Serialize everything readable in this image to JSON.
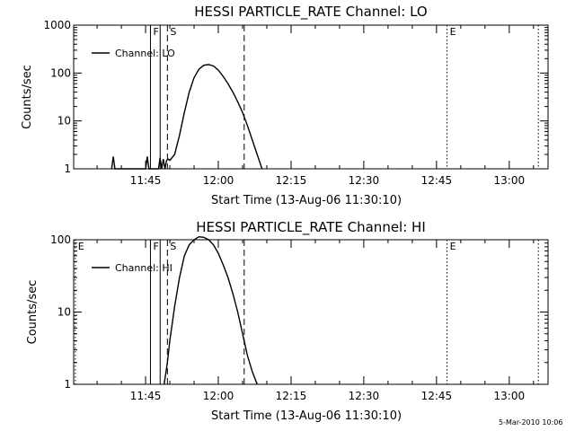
{
  "chart_data": [
    {
      "type": "line",
      "title": "HESSI PARTICLE_RATE Channel: LO",
      "xlabel": "Start Time (13-Aug-06 11:30:10)",
      "ylabel": "Counts/sec",
      "yscale": "log",
      "xlim": [
        "11:30:10",
        "13:08:00"
      ],
      "ylim": [
        1,
        1000
      ],
      "xticks": [
        "11:45",
        "12:00",
        "12:15",
        "12:30",
        "12:45",
        "13:00"
      ],
      "yticks": [
        "1",
        "10",
        "100",
        "1000"
      ],
      "grid": false,
      "legend_position": "top-left",
      "series": [
        {
          "name": "Channel: LO",
          "x": [
            "11:38:00",
            "11:38:20",
            "11:38:40",
            "11:45:00",
            "11:45:20",
            "11:45:40",
            "11:47:40",
            "11:48:00",
            "11:48:20",
            "11:48:40",
            "11:49:00",
            "11:49:20",
            "11:49:40",
            "11:50:00",
            "11:51:00",
            "11:52:00",
            "11:53:00",
            "11:54:00",
            "11:55:00",
            "11:56:00",
            "11:57:00",
            "11:58:00",
            "11:59:00",
            "12:00:00",
            "12:01:00",
            "12:02:00",
            "12:03:00",
            "12:04:00",
            "12:05:00",
            "12:06:00",
            "12:07:00",
            "12:08:00",
            "12:09:00"
          ],
          "values": [
            1,
            1.8,
            1,
            1,
            1.8,
            1,
            1,
            1.7,
            1,
            1.6,
            1,
            1.5,
            1.6,
            1.5,
            2,
            5,
            15,
            40,
            80,
            120,
            145,
            150,
            140,
            115,
            85,
            60,
            40,
            25,
            15,
            8,
            4,
            2,
            1
          ]
        }
      ],
      "event_markers": [
        {
          "label": "F",
          "x": "11:46:00",
          "style": "solid"
        },
        {
          "label": "",
          "x": "11:48:00",
          "style": "solid"
        },
        {
          "label": "S",
          "x": "11:49:30",
          "style": "dashed"
        },
        {
          "label": "",
          "x": "12:05:20",
          "style": "dashed"
        },
        {
          "label": "E",
          "x": "12:47:10",
          "style": "dotted"
        },
        {
          "label": "",
          "x": "13:06:00",
          "style": "dotted"
        }
      ]
    },
    {
      "type": "line",
      "title": "HESSI PARTICLE_RATE Channel: HI",
      "xlabel": "Start Time (13-Aug-06 11:30:10)",
      "ylabel": "Counts/sec",
      "yscale": "log",
      "xlim": [
        "11:30:10",
        "13:08:00"
      ],
      "ylim": [
        1,
        100
      ],
      "xticks": [
        "11:45",
        "12:00",
        "12:15",
        "12:30",
        "12:45",
        "13:00"
      ],
      "yticks": [
        "1",
        "10",
        "100"
      ],
      "grid": false,
      "legend_position": "top-left",
      "series": [
        {
          "name": "Channel: HI",
          "x": [
            "11:48:50",
            "11:49:30",
            "11:50:00",
            "11:51:00",
            "11:52:00",
            "11:53:00",
            "11:54:00",
            "11:55:00",
            "11:56:00",
            "11:57:00",
            "11:58:00",
            "11:59:00",
            "12:00:00",
            "12:01:00",
            "12:02:00",
            "12:03:00",
            "12:04:00",
            "12:05:00",
            "12:06:00",
            "12:07:00",
            "12:08:00"
          ],
          "values": [
            1,
            2,
            4,
            12,
            30,
            60,
            85,
            100,
            110,
            108,
            100,
            85,
            65,
            45,
            30,
            18,
            10,
            5,
            2.5,
            1.5,
            1
          ]
        }
      ],
      "event_markers": [
        {
          "label": "E",
          "x": "11:30:30",
          "style": "dotted"
        },
        {
          "label": "F",
          "x": "11:46:00",
          "style": "solid"
        },
        {
          "label": "",
          "x": "11:48:00",
          "style": "solid"
        },
        {
          "label": "S",
          "x": "11:49:30",
          "style": "dashed"
        },
        {
          "label": "",
          "x": "12:05:20",
          "style": "dashed"
        },
        {
          "label": "E",
          "x": "12:47:10",
          "style": "dotted"
        },
        {
          "label": "",
          "x": "13:06:00",
          "style": "dotted"
        }
      ]
    }
  ],
  "footer": {
    "timestamp": "5-Mar-2010 10:06"
  }
}
